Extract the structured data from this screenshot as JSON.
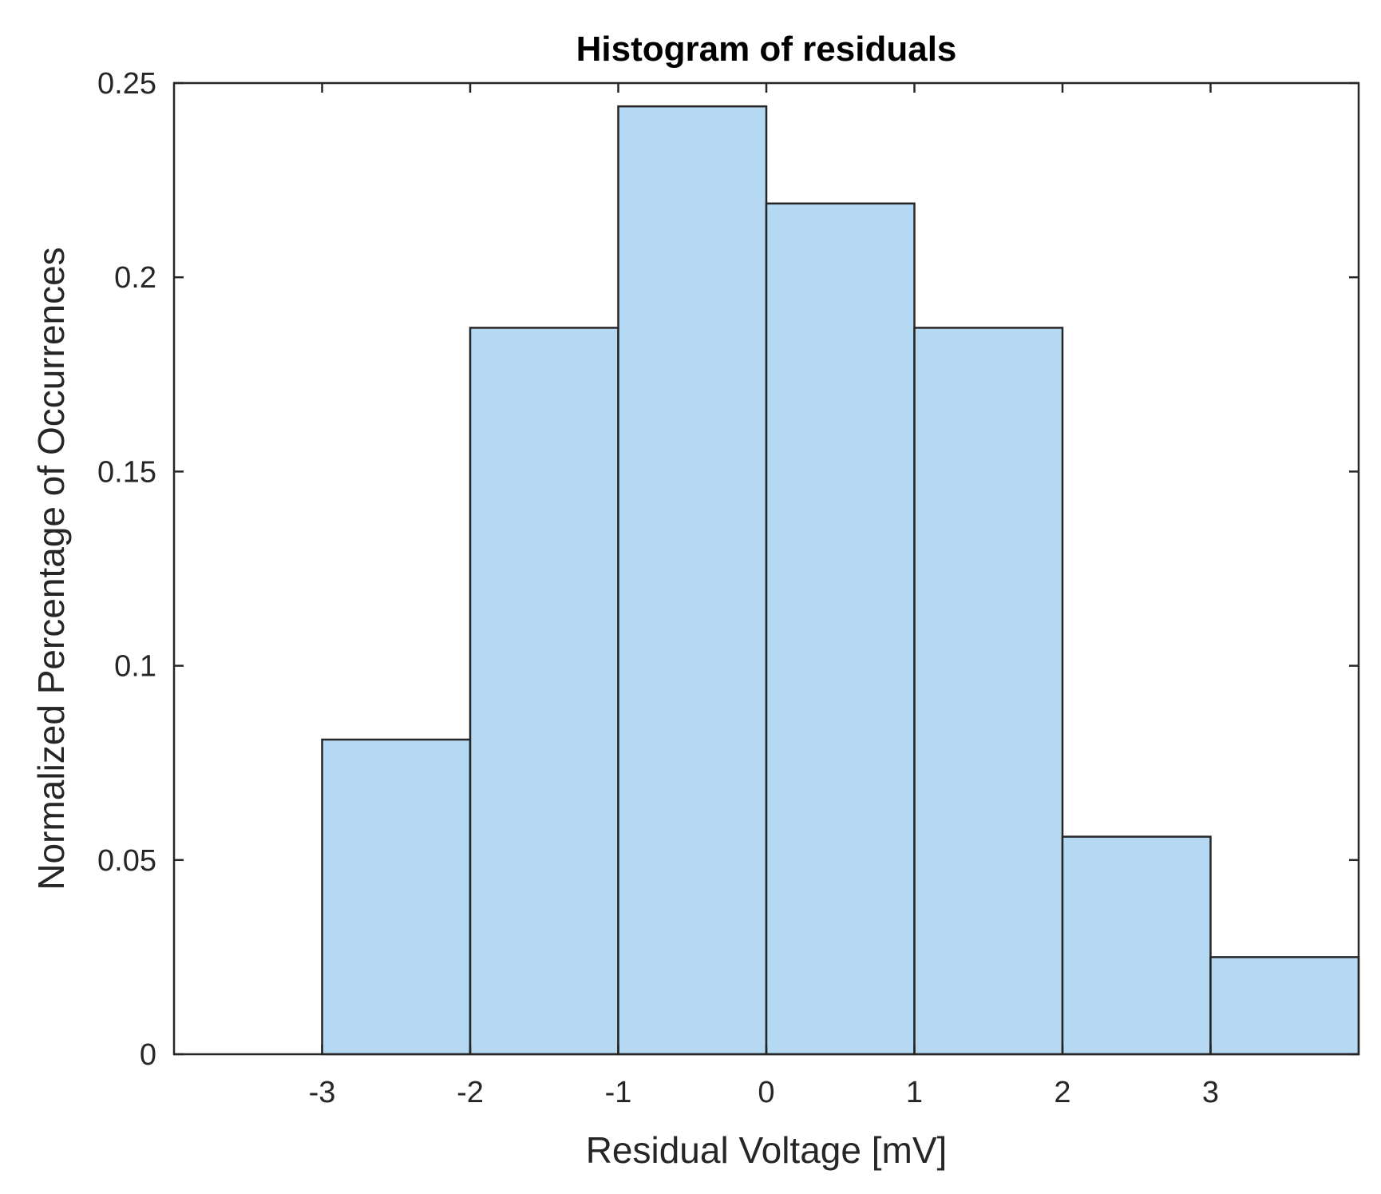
{
  "chart_data": {
    "type": "bar",
    "title": "Histogram of residuals",
    "xlabel": "Residual Voltage [mV]",
    "ylabel": "Normalized Percentage of Occurrences",
    "xlim": [
      -4,
      4
    ],
    "ylim": [
      0,
      0.25
    ],
    "x_ticks": [
      "-3",
      "-2",
      "-1",
      "0",
      "1",
      "2",
      "3"
    ],
    "y_ticks": [
      "0",
      "0.05",
      "0.1",
      "0.15",
      "0.2",
      "0.25"
    ],
    "bins": [
      {
        "x_start": -3,
        "x_end": -2,
        "value": 0.081
      },
      {
        "x_start": -2,
        "x_end": -1,
        "value": 0.187
      },
      {
        "x_start": -1,
        "x_end": 0,
        "value": 0.244
      },
      {
        "x_start": 0,
        "x_end": 1,
        "value": 0.219
      },
      {
        "x_start": 1,
        "x_end": 2,
        "value": 0.187
      },
      {
        "x_start": 2,
        "x_end": 3,
        "value": 0.056
      },
      {
        "x_start": 3,
        "x_end": 4,
        "value": 0.025
      }
    ],
    "grid": false,
    "legend": "none",
    "colors": {
      "bar_fill": "#b5d9f3",
      "bar_edge": "#262626",
      "axes": "#262626"
    }
  }
}
